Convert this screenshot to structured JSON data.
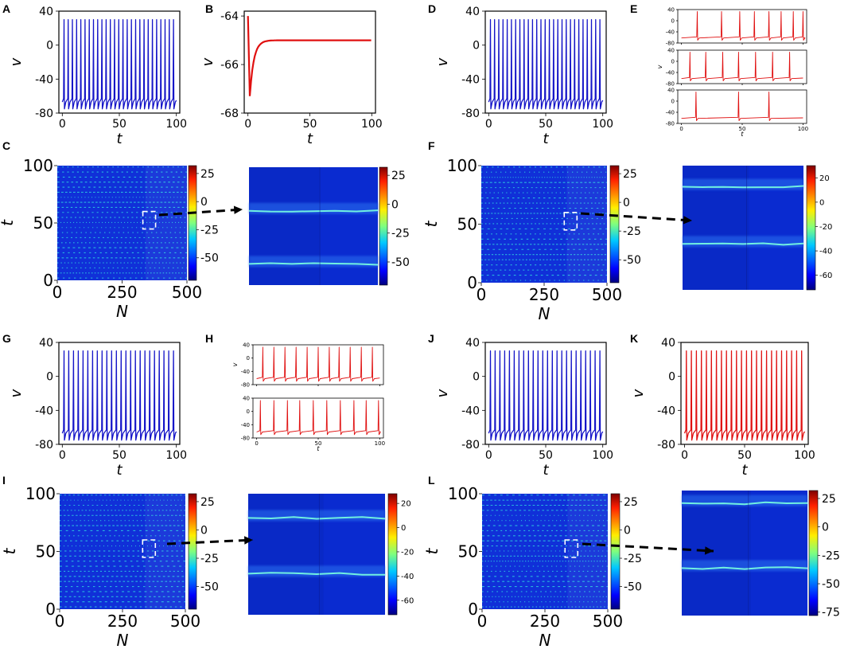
{
  "figure": {
    "panels": [
      {
        "letter": "A"
      },
      {
        "letter": "B"
      },
      {
        "letter": "C"
      },
      {
        "letter": "D"
      },
      {
        "letter": "E"
      },
      {
        "letter": "F"
      },
      {
        "letter": "G"
      },
      {
        "letter": "H"
      },
      {
        "letter": "I"
      },
      {
        "letter": "J"
      },
      {
        "letter": "K"
      },
      {
        "letter": "L"
      }
    ]
  },
  "colors": {
    "blue": "#1515c8",
    "red": "#e01010",
    "heat_bg": "#1030d8",
    "heat_spike": "#30e0e0"
  },
  "chart_data": [
    {
      "panel": "A",
      "type": "line",
      "color": "blue",
      "xlabel": "t",
      "ylabel": "v",
      "xticks": [
        "0",
        "50",
        "100"
      ],
      "yticks": [
        "40",
        "0",
        "-40",
        "-80"
      ],
      "xlim": [
        -3,
        103
      ],
      "ylim": [
        -80,
        40
      ],
      "spikes": 27,
      "series": [
        {
          "spike_peak": 30,
          "trough": -75,
          "rest": -67
        }
      ]
    },
    {
      "panel": "B",
      "type": "line",
      "color": "red",
      "xlabel": "t",
      "ylabel": "v",
      "xticks": [
        "0",
        "50",
        "100"
      ],
      "yticks": [
        "-64",
        "-66",
        "-68"
      ],
      "xlim": [
        -3,
        103
      ],
      "ylim": [
        -68,
        -63.8
      ],
      "series": [
        {
          "start": -64.0,
          "min": -67.3,
          "min_t": 1.5,
          "steady": -65.0
        }
      ]
    },
    {
      "panel": "C",
      "type": "heatmap",
      "xlabel": "N",
      "ylabel": "t",
      "xticks": [
        "0",
        "250",
        "500"
      ],
      "yticks": [
        "0",
        "50",
        "100"
      ],
      "xlim": [
        0,
        500
      ],
      "ylim": [
        0,
        100
      ],
      "colorbar_ticks": [
        "25",
        "0",
        "-25",
        "-50"
      ],
      "inset_colorbar_ticks": [
        "25",
        "0",
        "-25",
        "-50"
      ]
    },
    {
      "panel": "D",
      "type": "line",
      "color": "blue",
      "xlabel": "t",
      "ylabel": "v",
      "xticks": [
        "0",
        "50",
        "100"
      ],
      "yticks": [
        "40",
        "0",
        "-40",
        "-80"
      ],
      "xlim": [
        -3,
        103
      ],
      "ylim": [
        -80,
        40
      ],
      "spikes": 27,
      "series": [
        {
          "spike_peak": 30,
          "trough": -75,
          "rest": -67
        }
      ]
    },
    {
      "panel": "E",
      "type": "line",
      "color": "red",
      "xlabel": "t",
      "ylabel": "v",
      "xticks": [
        "0",
        "50",
        "100"
      ],
      "yticks": [
        "40",
        "0",
        "-40",
        "-80"
      ],
      "xlim": [
        -3,
        103
      ],
      "ylim": [
        -80,
        40
      ],
      "subplots": [
        {
          "spike_times": [
            13,
            33,
            48,
            60,
            72,
            82,
            92,
            100
          ]
        },
        {
          "spike_times": [
            7,
            20,
            34,
            47,
            61,
            75,
            89
          ]
        },
        {
          "spike_times": [
            12,
            47,
            72
          ]
        }
      ]
    },
    {
      "panel": "F",
      "type": "heatmap",
      "xlabel": "N",
      "ylabel": "t",
      "xticks": [
        "0",
        "250",
        "500"
      ],
      "yticks": [
        "0",
        "50",
        "100"
      ],
      "xlim": [
        0,
        500
      ],
      "ylim": [
        0,
        100
      ],
      "colorbar_ticks": [
        "25",
        "0",
        "-25",
        "-50"
      ],
      "inset_colorbar_ticks": [
        "20",
        "0",
        "-20",
        "-40",
        "-60"
      ]
    },
    {
      "panel": "G",
      "type": "line",
      "color": "blue",
      "xlabel": "t",
      "ylabel": "v",
      "xticks": [
        "0",
        "50",
        "100"
      ],
      "yticks": [
        "40",
        "0",
        "-40",
        "-80"
      ],
      "xlim": [
        -3,
        103
      ],
      "ylim": [
        -80,
        40
      ],
      "spikes": 24,
      "series": [
        {
          "spike_peak": 30,
          "trough": -75,
          "rest": -67
        }
      ]
    },
    {
      "panel": "H",
      "type": "line",
      "color": "red",
      "xlabel": "t",
      "ylabel": "v",
      "xticks": [
        "0",
        "50",
        "100"
      ],
      "yticks": [
        "40",
        "0",
        "-40",
        "-80"
      ],
      "xlim": [
        -3,
        103
      ],
      "ylim": [
        -80,
        40
      ],
      "subplots": [
        {
          "spike_times": [
            5,
            14,
            23,
            32,
            41,
            50,
            59,
            67,
            76,
            85,
            94
          ]
        },
        {
          "spike_times": [
            3,
            14,
            25,
            35,
            46,
            57,
            68,
            79,
            89,
            99
          ]
        }
      ]
    },
    {
      "panel": "I",
      "type": "heatmap",
      "xlabel": "N",
      "ylabel": "t",
      "xticks": [
        "0",
        "250",
        "500"
      ],
      "yticks": [
        "0",
        "50",
        "100"
      ],
      "xlim": [
        0,
        500
      ],
      "ylim": [
        0,
        100
      ],
      "colorbar_ticks": [
        "25",
        "0",
        "-25",
        "-50"
      ],
      "inset_colorbar_ticks": [
        "20",
        "0",
        "-20",
        "-40",
        "-60"
      ]
    },
    {
      "panel": "J",
      "type": "line",
      "color": "blue",
      "xlabel": "t",
      "ylabel": "v",
      "xticks": [
        "0",
        "50",
        "100"
      ],
      "yticks": [
        "40",
        "0",
        "-40",
        "-80"
      ],
      "xlim": [
        -3,
        103
      ],
      "ylim": [
        -80,
        40
      ],
      "spikes": 24,
      "series": [
        {
          "spike_peak": 30,
          "trough": -75,
          "rest": -67
        }
      ]
    },
    {
      "panel": "K",
      "type": "line",
      "color": "red",
      "xlabel": "t",
      "ylabel": "v",
      "xticks": [
        "0",
        "50",
        "100"
      ],
      "yticks": [
        "40",
        "0",
        "-40",
        "-80"
      ],
      "xlim": [
        -3,
        103
      ],
      "ylim": [
        -80,
        40
      ],
      "spikes": 24,
      "series": [
        {
          "spike_peak": 30,
          "trough": -75,
          "rest": -67
        }
      ]
    },
    {
      "panel": "L",
      "type": "heatmap",
      "xlabel": "N",
      "ylabel": "t",
      "xticks": [
        "0",
        "250",
        "500"
      ],
      "yticks": [
        "0",
        "50",
        "100"
      ],
      "xlim": [
        0,
        500
      ],
      "ylim": [
        0,
        100
      ],
      "colorbar_ticks": [
        "25",
        "0",
        "-25",
        "-50"
      ],
      "inset_colorbar_ticks": [
        "25",
        "0",
        "-25",
        "-50",
        "-75"
      ]
    }
  ]
}
